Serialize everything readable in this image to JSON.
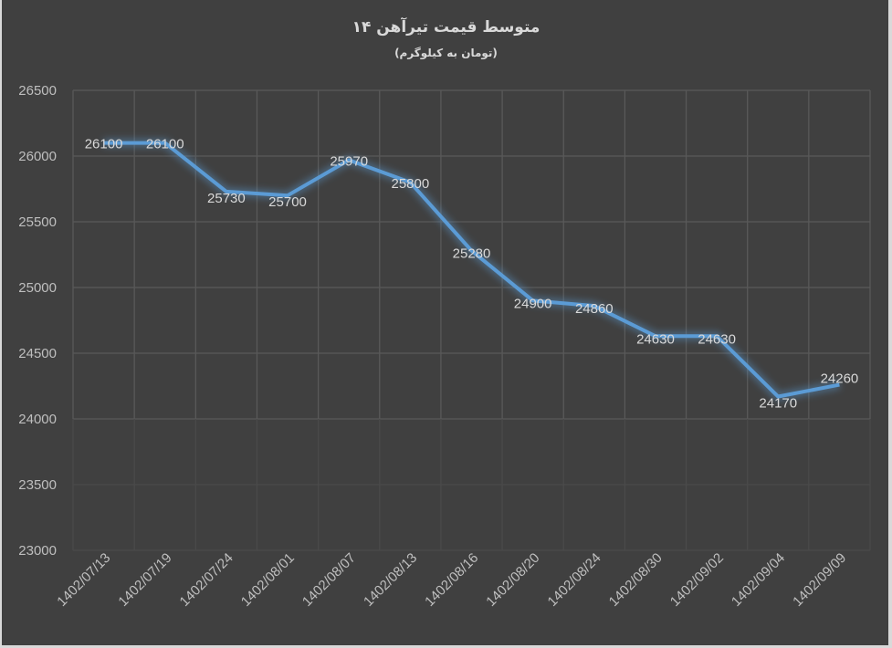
{
  "chart_data": {
    "type": "line",
    "title": "متوسط قیمت تیرآهن ۱۴",
    "subtitle": "(تومان به کیلوگرم)",
    "xlabel": "",
    "ylabel": "",
    "categories": [
      "1402/07/13",
      "1402/07/19",
      "1402/07/24",
      "1402/08/01",
      "1402/08/07",
      "1402/08/13",
      "1402/08/16",
      "1402/08/20",
      "1402/08/24",
      "1402/08/30",
      "1402/09/02",
      "1402/09/04",
      "1402/09/09"
    ],
    "series": [
      {
        "name": "متوسط قیمت تیرآهن ۱۴",
        "values": [
          26100,
          26100,
          25730,
          25700,
          25970,
          25800,
          25280,
          24900,
          24860,
          24630,
          24630,
          24170,
          24260
        ],
        "color": "#5b9bd5"
      }
    ],
    "ylim": [
      23000,
      26500
    ],
    "yticks": [
      23000,
      23500,
      24000,
      24500,
      25000,
      25500,
      26000,
      26500
    ],
    "grid": true,
    "legend": "none",
    "data_labels": true
  },
  "colors": {
    "background": "#404040",
    "grid": "#595959",
    "line": "#5b9bd5",
    "text": "#d9d9d9"
  }
}
